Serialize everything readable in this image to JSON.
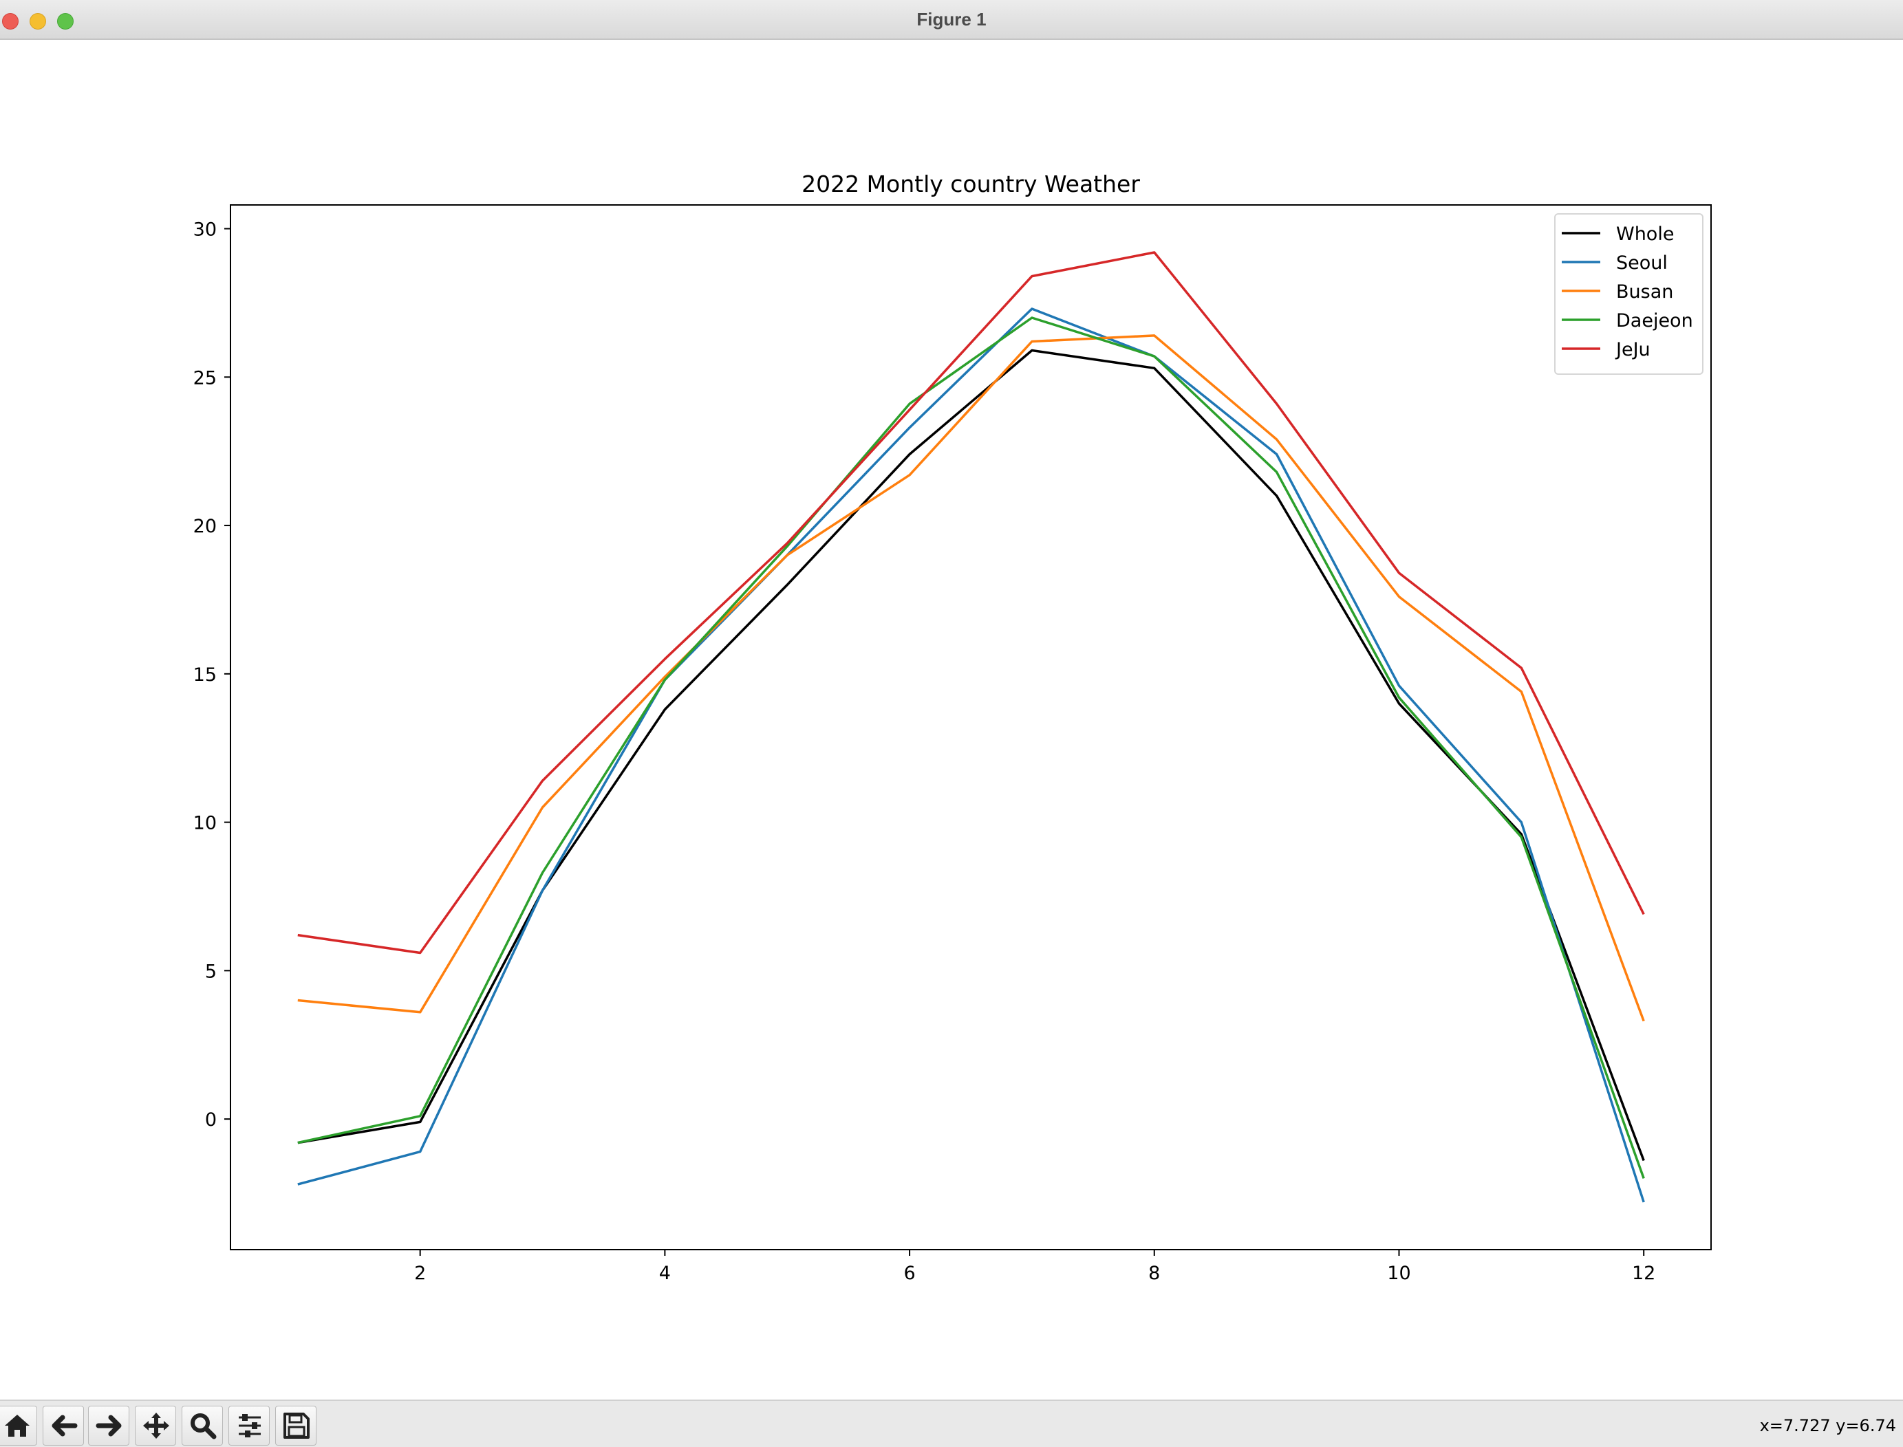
{
  "window": {
    "title": "Figure 1"
  },
  "toolbar": {
    "buttons": [
      {
        "icon": "home-icon",
        "name": "home-button"
      },
      {
        "icon": "back-arrow-icon",
        "name": "back-button"
      },
      {
        "icon": "forward-arrow-icon",
        "name": "forward-button"
      },
      {
        "icon": "move-icon",
        "name": "pan-button"
      },
      {
        "icon": "magnifier-icon",
        "name": "zoom-button"
      },
      {
        "icon": "sliders-icon",
        "name": "configure-subplots-button"
      },
      {
        "icon": "floppy-disk-icon",
        "name": "save-button"
      }
    ],
    "coordinates": "x=7.727 y=6.74"
  },
  "chart_data": {
    "type": "line",
    "title": "2022 Montly country Weather",
    "xlabel": "",
    "ylabel": "",
    "x": [
      1,
      2,
      3,
      4,
      5,
      6,
      7,
      8,
      9,
      10,
      11,
      12
    ],
    "xlim": [
      0.45,
      12.55
    ],
    "ylim": [
      -4.4,
      30.8
    ],
    "xticks": [
      2,
      4,
      6,
      8,
      10,
      12
    ],
    "yticks": [
      0,
      5,
      10,
      15,
      20,
      25,
      30
    ],
    "grid": false,
    "legend_position": "top-right",
    "series": [
      {
        "name": "Whole",
        "color": "#000000",
        "values": [
          -0.8,
          -0.1,
          7.7,
          13.8,
          18.0,
          22.4,
          25.9,
          25.3,
          21.0,
          14.0,
          9.6,
          -1.4
        ]
      },
      {
        "name": "Seoul",
        "color": "#1f77b4",
        "values": [
          -2.2,
          -1.1,
          7.7,
          14.8,
          19.0,
          23.3,
          27.3,
          25.7,
          22.4,
          14.6,
          10.0,
          -2.8
        ]
      },
      {
        "name": "Busan",
        "color": "#ff7f0e",
        "values": [
          4.0,
          3.6,
          10.5,
          14.9,
          19.0,
          21.7,
          26.2,
          26.4,
          22.9,
          17.6,
          14.4,
          3.3
        ]
      },
      {
        "name": "Daejeon",
        "color": "#2ca02c",
        "values": [
          -0.8,
          0.1,
          8.3,
          14.8,
          19.3,
          24.1,
          27.0,
          25.7,
          21.8,
          14.2,
          9.5,
          -2.0
        ]
      },
      {
        "name": "JeJu",
        "color": "#d62728",
        "values": [
          6.2,
          5.6,
          11.4,
          15.5,
          19.4,
          23.9,
          28.4,
          29.2,
          24.1,
          18.4,
          15.2,
          6.9
        ]
      }
    ]
  }
}
